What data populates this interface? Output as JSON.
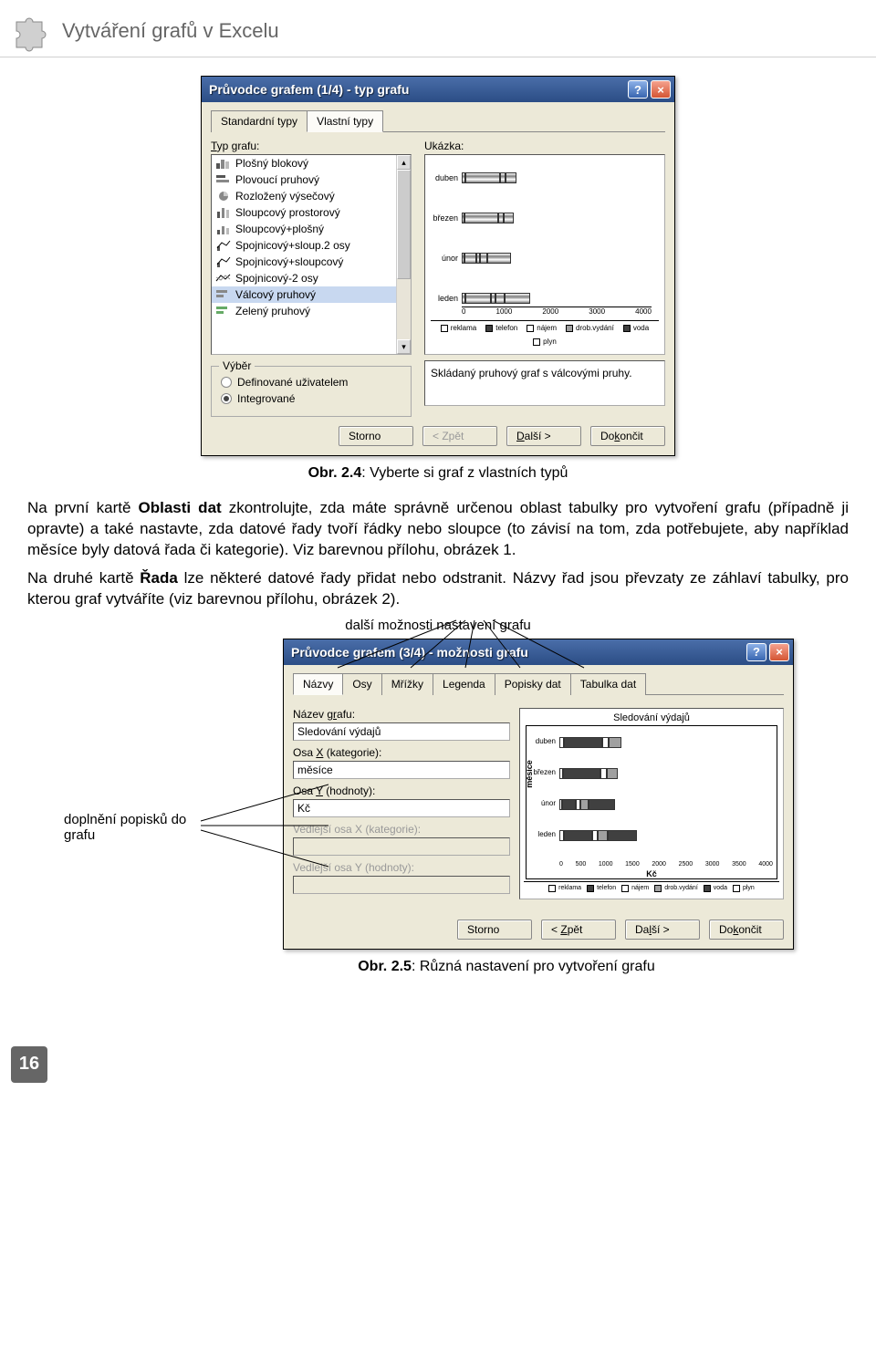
{
  "header": {
    "title": "Vytváření grafů v Excelu"
  },
  "dialog1": {
    "title": "Průvodce grafem (1/4) - typ grafu",
    "tabs": [
      "Standardní typy",
      "Vlastní typy"
    ],
    "active_tab": 1,
    "type_label": "Typ grafu:",
    "sample_label": "Ukázka:",
    "listbox": [
      "Plošný blokový",
      "Plovoucí pruhový",
      "Rozložený výsečový",
      "Sloupcový prostorový",
      "Sloupcový+plošný",
      "Spojnicový+sloup.2 osy",
      "Spojnicový+sloupcový",
      "Spojnicový-2 osy",
      "Válcový pruhový",
      "Zelený pruhový"
    ],
    "listbox_selected": 8,
    "group_title": "Výběr",
    "radio_opts": [
      "Definované uživatelem",
      "Integrované"
    ],
    "radio_selected": 1,
    "preview_desc": "Skládaný pruhový graf s válcovými pruhy.",
    "preview_categories": [
      "duben",
      "březen",
      "únor",
      "leden"
    ],
    "preview_ticks": [
      "0",
      "1000",
      "2000",
      "3000",
      "4000"
    ],
    "preview_bars": [
      [
        83,
        720,
        120,
        238
      ],
      [
        65,
        705,
        115,
        214
      ],
      [
        53,
        255,
        86,
        150,
        500
      ],
      [
        84,
        527,
        99,
        200,
        535
      ]
    ],
    "legend": [
      "reklama",
      "telefon",
      "nájem",
      "drob.vydání",
      "voda",
      "plyn"
    ],
    "legend_colors": [
      "#ffffff",
      "#404040",
      "#ffffff",
      "#a0a0a0",
      "#404040",
      "#ffffff"
    ],
    "buttons": {
      "cancel": "Storno",
      "back": "< Zpět",
      "next": "Další >",
      "finish": "Dokončit"
    }
  },
  "caption1": {
    "prefix": "Obr. 2.4",
    "text": ": Vyberte si graf z vlastních typů"
  },
  "para1_a": "Na první kartě ",
  "para1_b": "Oblasti dat",
  "para1_c": " zkontrolujte, zda máte správně určenou oblast tabulky pro vytvoření grafu (případně ji opravte) a také nastavte, zda datové řady tvoří řádky nebo sloupce (to závisí na tom, zda potřebujete, aby například měsíce byly datová řada či kategorie). Viz barevnou přílohu, obrázek 1.",
  "para2_a": "Na druhé kartě ",
  "para2_b": "Řada",
  "para2_c": " lze některé datové řady přidat nebo odstranit. Názvy řad jsou převzaty ze záhlaví tabulky, pro kterou graf vytváříte (viz barevnou přílohu, obrázek 2).",
  "annot_top": "další možnosti nastavení grafu",
  "annot_left": "doplnění popisků do grafu",
  "dialog2": {
    "title": "Průvodce grafem (3/4) - možnosti grafu",
    "tabs": [
      "Názvy",
      "Osy",
      "Mřížky",
      "Legenda",
      "Popisky dat",
      "Tabulka dat"
    ],
    "active_tab": 0,
    "labels": {
      "chart_title": "Název grafu:",
      "x_axis": "Osa X (kategorie):",
      "y_axis": "Osa Y (hodnoty):",
      "x2_axis": "Vedlejší osa X (kategorie):",
      "y2_axis": "Vedlejší osa Y (hodnoty):"
    },
    "values": {
      "chart_title": "Sledování výdajů",
      "x_axis": "měsíce",
      "y_axis": "Kč"
    },
    "preview_title": "Sledování výdajů",
    "preview_ylabel": "měsíce",
    "preview_xlabel": "Kč",
    "preview_categories": [
      "duben",
      "březen",
      "únor",
      "leden"
    ],
    "preview_ticks": [
      "0",
      "500",
      "1000",
      "1500",
      "2000",
      "2500",
      "3000",
      "3500",
      "4000"
    ],
    "legend": [
      "reklama",
      "telefon",
      "nájem",
      "drob.vydání",
      "voda",
      "plyn"
    ],
    "buttons": {
      "cancel": "Storno",
      "back": "< Zpět",
      "next": "Další >",
      "finish": "Dokončit"
    }
  },
  "caption2": {
    "prefix": "Obr. 2.5",
    "text": ": Různá nastavení pro vytvoření grafu"
  },
  "page_num": "16"
}
